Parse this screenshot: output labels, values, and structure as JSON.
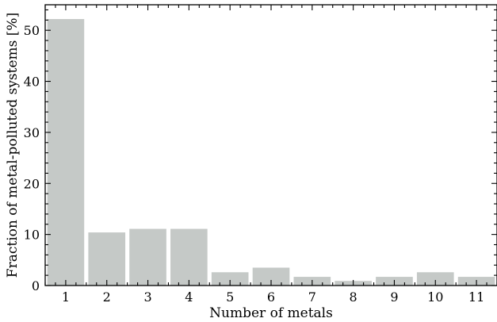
{
  "chart_data": {
    "type": "bar",
    "xlabel": "Number of metals",
    "ylabel": "Fraction of metal-polluted systems [%]",
    "categories": [
      "1",
      "2",
      "3",
      "4",
      "5",
      "6",
      "7",
      "8",
      "9",
      "10",
      "11"
    ],
    "values": [
      52.2,
      10.4,
      11.1,
      11.1,
      2.6,
      3.5,
      1.7,
      0.9,
      1.7,
      2.6,
      1.7
    ],
    "xlim": [
      0.5,
      11.5
    ],
    "ylim": [
      0,
      55
    ],
    "yticks": [
      0,
      10,
      20,
      30,
      40,
      50
    ],
    "bar_color": "#c5c9c7",
    "grid": false
  }
}
